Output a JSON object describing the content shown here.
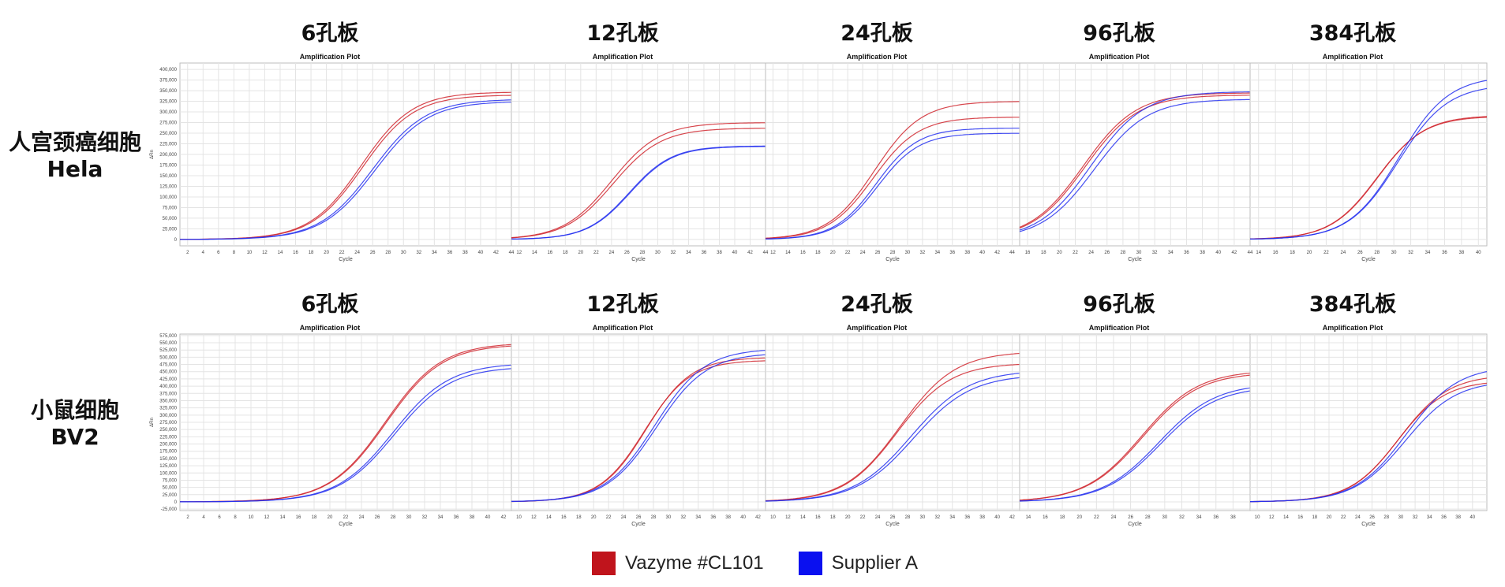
{
  "row_labels": [
    {
      "line1": "人宫颈癌细胞",
      "line2": "Hela"
    },
    {
      "line1": "小鼠细胞",
      "line2": "BV2"
    }
  ],
  "legend": [
    {
      "label": "Vazyme #CL101",
      "color": "#c0141c"
    },
    {
      "label": "Supplier A",
      "color": "#0a10f0"
    }
  ],
  "colors": {
    "vazyme": "#d0262e",
    "supplier": "#2530f0",
    "grid": "#e4e4e4",
    "axis": "#9a9a9a"
  },
  "chart_data": [
    {
      "type": "line",
      "row": "Hela",
      "plate": "6孔板",
      "subtitle": "Amplification Plot",
      "xlabel": "Cycle",
      "ylabel": "ΔRn",
      "xticks": [
        2,
        4,
        6,
        8,
        10,
        12,
        14,
        16,
        18,
        20,
        22,
        24,
        26,
        28,
        30,
        32,
        34,
        36,
        38,
        40,
        42,
        44
      ],
      "yticks": [
        0,
        25000,
        50000,
        75000,
        100000,
        125000,
        150000,
        175000,
        200000,
        225000,
        250000,
        275000,
        300000,
        325000,
        350000,
        375000,
        400000
      ],
      "ytick_labels": [
        "0",
        "25,000",
        "50,000",
        "75,000",
        "100,000",
        "125,000",
        "150,000",
        "175,000",
        "200,000",
        "225,000",
        "250,000",
        "275,000",
        "300,000",
        "325,000",
        "350,000",
        "375,000",
        "400,000"
      ],
      "xlim": [
        1,
        44
      ],
      "ylim": [
        -15000,
        415000
      ],
      "series": [
        {
          "group": "Vazyme #CL101",
          "base": 0,
          "top": 347000,
          "mid": 24.5,
          "k": 0.3
        },
        {
          "group": "Vazyme #CL101",
          "base": 0,
          "top": 340000,
          "mid": 24.7,
          "k": 0.3
        },
        {
          "group": "Supplier A",
          "base": 0,
          "top": 330000,
          "mid": 26.0,
          "k": 0.29
        },
        {
          "group": "Supplier A",
          "base": 0,
          "top": 325000,
          "mid": 26.3,
          "k": 0.29
        }
      ]
    },
    {
      "type": "line",
      "row": "Hela",
      "plate": "12孔板",
      "subtitle": "Amplification Plot",
      "xlabel": "Cycle",
      "ylabel": "",
      "xticks": [
        12,
        14,
        16,
        18,
        20,
        22,
        24,
        26,
        28,
        30,
        32,
        34,
        36,
        38,
        40,
        42,
        44
      ],
      "xlim": [
        11,
        44
      ],
      "ylim": [
        -15000,
        415000
      ],
      "series": [
        {
          "group": "Vazyme #CL101",
          "base": 0,
          "top": 275000,
          "mid": 24.0,
          "k": 0.32
        },
        {
          "group": "Vazyme #CL101",
          "base": 0,
          "top": 262000,
          "mid": 24.2,
          "k": 0.32
        },
        {
          "group": "Supplier A",
          "base": 0,
          "top": 220000,
          "mid": 26.3,
          "k": 0.36
        },
        {
          "group": "Supplier A",
          "base": 0,
          "top": 219000,
          "mid": 26.4,
          "k": 0.36
        }
      ]
    },
    {
      "type": "line",
      "row": "Hela",
      "plate": "24孔板",
      "subtitle": "Amplification Plot",
      "xlabel": "Cycle",
      "ylabel": "",
      "xticks": [
        12,
        14,
        16,
        18,
        20,
        22,
        24,
        26,
        28,
        30,
        32,
        34,
        36,
        38,
        40,
        42,
        44
      ],
      "xlim": [
        11,
        45
      ],
      "ylim": [
        -15000,
        415000
      ],
      "series": [
        {
          "group": "Vazyme #CL101",
          "base": 0,
          "top": 325000,
          "mid": 25.6,
          "k": 0.32
        },
        {
          "group": "Vazyme #CL101",
          "base": 0,
          "top": 288000,
          "mid": 25.4,
          "k": 0.33
        },
        {
          "group": "Supplier A",
          "base": 0,
          "top": 262000,
          "mid": 25.8,
          "k": 0.36
        },
        {
          "group": "Supplier A",
          "base": 0,
          "top": 250000,
          "mid": 26.0,
          "k": 0.36
        }
      ]
    },
    {
      "type": "line",
      "row": "Hela",
      "plate": "96孔板",
      "subtitle": "Amplification Plot",
      "xlabel": "Cycle",
      "ylabel": "",
      "xticks": [
        16,
        18,
        20,
        22,
        24,
        26,
        28,
        30,
        32,
        34,
        36,
        38,
        40,
        42,
        44
      ],
      "xlim": [
        15,
        44
      ],
      "ylim": [
        -15000,
        415000
      ],
      "series": [
        {
          "group": "Vazyme #CL101",
          "base": 0,
          "top": 345000,
          "mid": 23.0,
          "k": 0.3
        },
        {
          "group": "Vazyme #CL101",
          "base": 0,
          "top": 340000,
          "mid": 23.2,
          "k": 0.3
        },
        {
          "group": "Supplier A",
          "base": 0,
          "top": 348000,
          "mid": 24.0,
          "k": 0.3
        },
        {
          "group": "Supplier A",
          "base": 0,
          "top": 330000,
          "mid": 24.4,
          "k": 0.3
        }
      ]
    },
    {
      "type": "line",
      "row": "Hela",
      "plate": "384孔板",
      "subtitle": "Amplification Plot",
      "xlabel": "Cycle",
      "ylabel": "",
      "xticks": [
        14,
        16,
        18,
        20,
        22,
        24,
        26,
        28,
        30,
        32,
        34,
        36,
        38,
        40
      ],
      "xlim": [
        13,
        41
      ],
      "ylim": [
        -15000,
        415000
      ],
      "series": [
        {
          "group": "Vazyme #CL101",
          "base": 0,
          "top": 290000,
          "mid": 28.0,
          "k": 0.36
        },
        {
          "group": "Vazyme #CL101",
          "base": 0,
          "top": 292000,
          "mid": 28.1,
          "k": 0.36
        },
        {
          "group": "Supplier A",
          "base": 0,
          "top": 385000,
          "mid": 30.6,
          "k": 0.34
        },
        {
          "group": "Supplier A",
          "base": 0,
          "top": 365000,
          "mid": 30.5,
          "k": 0.34
        }
      ]
    },
    {
      "type": "line",
      "row": "BV2",
      "plate": "6孔板",
      "subtitle": "Amplification Plot",
      "xlabel": "Cycle",
      "ylabel": "ΔRn",
      "xticks": [
        2,
        4,
        6,
        8,
        10,
        12,
        14,
        16,
        18,
        20,
        22,
        24,
        26,
        28,
        30,
        32,
        34,
        36,
        38,
        40,
        42
      ],
      "yticks": [
        -25000,
        0,
        25000,
        50000,
        75000,
        100000,
        125000,
        150000,
        175000,
        200000,
        225000,
        250000,
        275000,
        300000,
        325000,
        350000,
        375000,
        400000,
        425000,
        450000,
        475000,
        500000,
        525000,
        550000,
        575000
      ],
      "ytick_labels": [
        "-25,000",
        "0",
        "25,000",
        "50,000",
        "75,000",
        "100,000",
        "125,000",
        "150,000",
        "175,000",
        "200,000",
        "225,000",
        "250,000",
        "275,000",
        "300,000",
        "325,000",
        "350,000",
        "375,000",
        "400,000",
        "425,000",
        "450,000",
        "475,000",
        "500,000",
        "525,000",
        "550,000",
        "575,000"
      ],
      "xlim": [
        1,
        43
      ],
      "ylim": [
        -30000,
        580000
      ],
      "series": [
        {
          "group": "Vazyme #CL101",
          "base": 0,
          "top": 550000,
          "mid": 27.0,
          "k": 0.28
        },
        {
          "group": "Vazyme #CL101",
          "base": 0,
          "top": 545000,
          "mid": 27.1,
          "k": 0.28
        },
        {
          "group": "Supplier A",
          "base": 0,
          "top": 480000,
          "mid": 28.0,
          "k": 0.28
        },
        {
          "group": "Supplier A",
          "base": 0,
          "top": 468000,
          "mid": 28.2,
          "k": 0.28
        }
      ]
    },
    {
      "type": "line",
      "row": "BV2",
      "plate": "12孔板",
      "subtitle": "Amplification Plot",
      "xlabel": "Cycle",
      "ylabel": "",
      "xticks": [
        10,
        12,
        14,
        16,
        18,
        20,
        22,
        24,
        26,
        28,
        30,
        32,
        34,
        36,
        38,
        40,
        42
      ],
      "xlim": [
        9,
        43
      ],
      "ylim": [
        -30000,
        580000
      ],
      "series": [
        {
          "group": "Vazyme #CL101",
          "base": 0,
          "top": 490000,
          "mid": 26.8,
          "k": 0.33
        },
        {
          "group": "Vazyme #CL101",
          "base": 0,
          "top": 500000,
          "mid": 27.0,
          "k": 0.33
        },
        {
          "group": "Supplier A",
          "base": 0,
          "top": 530000,
          "mid": 28.2,
          "k": 0.3
        },
        {
          "group": "Supplier A",
          "base": 0,
          "top": 515000,
          "mid": 28.4,
          "k": 0.3
        }
      ]
    },
    {
      "type": "line",
      "row": "BV2",
      "plate": "24孔板",
      "subtitle": "Amplification Plot",
      "xlabel": "Cycle",
      "ylabel": "",
      "xticks": [
        10,
        12,
        14,
        16,
        18,
        20,
        22,
        24,
        26,
        28,
        30,
        32,
        34,
        36,
        38,
        40,
        42
      ],
      "xlim": [
        9,
        43
      ],
      "ylim": [
        -30000,
        580000
      ],
      "series": [
        {
          "group": "Vazyme #CL101",
          "base": 0,
          "top": 520000,
          "mid": 27.0,
          "k": 0.27
        },
        {
          "group": "Vazyme #CL101",
          "base": 0,
          "top": 480000,
          "mid": 26.6,
          "k": 0.28
        },
        {
          "group": "Supplier A",
          "base": 0,
          "top": 455000,
          "mid": 28.5,
          "k": 0.26
        },
        {
          "group": "Supplier A",
          "base": 0,
          "top": 440000,
          "mid": 28.8,
          "k": 0.26
        }
      ]
    },
    {
      "type": "line",
      "row": "BV2",
      "plate": "96孔板",
      "subtitle": "Amplification Plot",
      "xlabel": "Cycle",
      "ylabel": "",
      "xticks": [
        14,
        16,
        18,
        20,
        22,
        24,
        26,
        28,
        30,
        32,
        34,
        36,
        38
      ],
      "xlim": [
        13,
        40
      ],
      "ylim": [
        -30000,
        580000
      ],
      "series": [
        {
          "group": "Vazyme #CL101",
          "base": 0,
          "top": 455000,
          "mid": 27.3,
          "k": 0.3
        },
        {
          "group": "Vazyme #CL101",
          "base": 0,
          "top": 448000,
          "mid": 27.4,
          "k": 0.3
        },
        {
          "group": "Supplier A",
          "base": 0,
          "top": 410000,
          "mid": 29.3,
          "k": 0.3
        },
        {
          "group": "Supplier A",
          "base": 0,
          "top": 400000,
          "mid": 29.5,
          "k": 0.3
        }
      ]
    },
    {
      "type": "line",
      "row": "BV2",
      "plate": "384孔板",
      "subtitle": "Amplification Plot",
      "xlabel": "Cycle",
      "ylabel": "",
      "xticks": [
        10,
        12,
        14,
        16,
        18,
        20,
        22,
        24,
        26,
        28,
        30,
        32,
        34,
        36,
        38,
        40
      ],
      "xlim": [
        9,
        42
      ],
      "ylim": [
        -30000,
        580000
      ],
      "series": [
        {
          "group": "Vazyme #CL101",
          "base": 0,
          "top": 420000,
          "mid": 29.5,
          "k": 0.3
        },
        {
          "group": "Vazyme #CL101",
          "base": 0,
          "top": 440000,
          "mid": 29.8,
          "k": 0.29
        },
        {
          "group": "Supplier A",
          "base": 0,
          "top": 470000,
          "mid": 30.8,
          "k": 0.28
        },
        {
          "group": "Supplier A",
          "base": 0,
          "top": 420000,
          "mid": 30.6,
          "k": 0.28
        }
      ]
    }
  ]
}
